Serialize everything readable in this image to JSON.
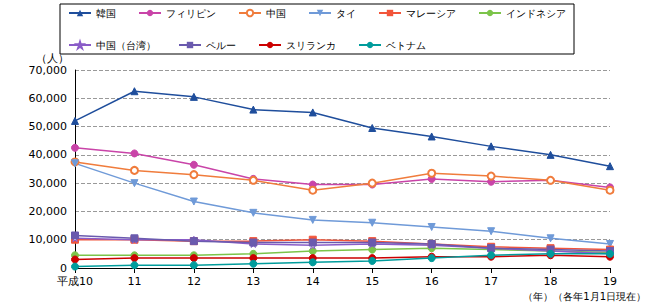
{
  "chart_data": {
    "type": "line",
    "y_label": "（人）",
    "x_label": "（年）（各年1月1日現在）",
    "categories": [
      "平成10",
      "11",
      "12",
      "13",
      "14",
      "15",
      "16",
      "17",
      "18",
      "19"
    ],
    "ylim": [
      0,
      70000
    ],
    "yticks": [
      0,
      {
        "value": 10000,
        "label": "10,000"
      },
      {
        "value": 20000,
        "label": "20,000"
      },
      {
        "value": 30000,
        "label": "30,000"
      },
      {
        "value": 40000,
        "label": "40,000"
      },
      {
        "value": 50000,
        "label": "50,000"
      },
      {
        "value": 60000,
        "label": "60,000"
      },
      {
        "value": 70000,
        "label": "70,000"
      }
    ],
    "grid": true,
    "legend": "top",
    "series": [
      {
        "name": "韓国",
        "color": "#1f4e9c",
        "marker": "triangle",
        "values": [
          52000,
          62500,
          60500,
          56000,
          55000,
          49500,
          46500,
          43000,
          40000,
          36000
        ]
      },
      {
        "name": "フィリピン",
        "color": "#c944a8",
        "marker": "circle",
        "values": [
          42500,
          40500,
          36500,
          31500,
          29500,
          29500,
          31500,
          30500,
          31000,
          28500
        ]
      },
      {
        "name": "中国",
        "color": "#f07c3c",
        "marker": "open_circle",
        "values": [
          37500,
          34500,
          33000,
          31000,
          27500,
          30000,
          33500,
          32500,
          31000,
          27500
        ]
      },
      {
        "name": "タイ",
        "color": "#6f9ad8",
        "marker": "triangle_down",
        "values": [
          37000,
          30000,
          23500,
          19500,
          17000,
          16000,
          14500,
          13000,
          10500,
          8500
        ]
      },
      {
        "name": "マレーシア",
        "color": "#f2553a",
        "marker": "square",
        "values": [
          10000,
          10000,
          9500,
          9500,
          10000,
          9500,
          8500,
          7500,
          7000,
          6500
        ]
      },
      {
        "name": "インドネシア",
        "color": "#7cc44a",
        "marker": "circle",
        "values": [
          4500,
          4500,
          4500,
          5000,
          6000,
          6500,
          7000,
          6500,
          6000,
          5500
        ]
      },
      {
        "name": "中国（台湾）",
        "color": "#8a5cc8",
        "marker": "open_star",
        "values": [
          10500,
          10000,
          10000,
          8500,
          8000,
          8500,
          8000,
          7000,
          6000,
          5000
        ]
      },
      {
        "name": "ペルー",
        "color": "#6a5aae",
        "marker": "square",
        "values": [
          11500,
          10500,
          9500,
          9000,
          9000,
          9000,
          8500,
          7000,
          6500,
          6000
        ]
      },
      {
        "name": "スリランカ",
        "color": "#cc0000",
        "marker": "circle",
        "values": [
          3000,
          3500,
          3500,
          3500,
          3500,
          3500,
          4000,
          4000,
          4500,
          4000
        ]
      },
      {
        "name": "ベトナム",
        "color": "#009c9c",
        "marker": "circle",
        "values": [
          500,
          1000,
          1000,
          1500,
          2000,
          2500,
          3500,
          4500,
          5000,
          5000
        ]
      }
    ]
  }
}
